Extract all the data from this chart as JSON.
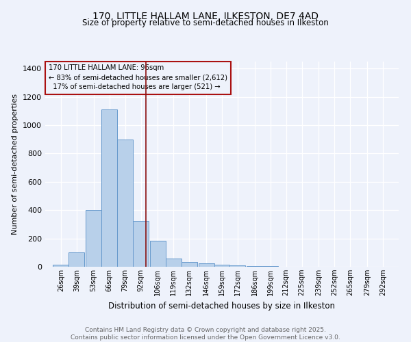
{
  "title": "170, LITTLE HALLAM LANE, ILKESTON, DE7 4AD",
  "subtitle": "Size of property relative to semi-detached houses in Ilkeston",
  "xlabel": "Distribution of semi-detached houses by size in Ilkeston",
  "ylabel": "Number of semi-detached properties",
  "footer_line1": "Contains HM Land Registry data © Crown copyright and database right 2025.",
  "footer_line2": "Contains public sector information licensed under the Open Government Licence v3.0.",
  "bin_labels": [
    "26sqm",
    "39sqm",
    "53sqm",
    "66sqm",
    "79sqm",
    "92sqm",
    "106sqm",
    "119sqm",
    "132sqm",
    "146sqm",
    "159sqm",
    "172sqm",
    "186sqm",
    "199sqm",
    "212sqm",
    "225sqm",
    "239sqm",
    "252sqm",
    "265sqm",
    "279sqm",
    "292sqm"
  ],
  "bin_centers": [
    26,
    39,
    53,
    66,
    79,
    92,
    106,
    119,
    132,
    146,
    159,
    172,
    186,
    199,
    212,
    225,
    239,
    252,
    265,
    279,
    292
  ],
  "bar_values": [
    15,
    100,
    400,
    1110,
    900,
    325,
    185,
    60,
    35,
    25,
    15,
    10,
    5,
    3,
    2,
    1,
    1,
    0,
    0,
    0
  ],
  "bar_color": "#b8d0ea",
  "bar_edge_color": "#6699cc",
  "property_size": 96,
  "red_line_color": "#8b1010",
  "annotation_line1": "170 LITTLE HALLAM LANE: 96sqm",
  "annotation_line2": "← 83% of semi-detached houses are smaller (2,612)",
  "annotation_line3": "17% of semi-detached houses are larger (521) →",
  "annotation_box_color": "#aa1111",
  "ylim": [
    0,
    1450
  ],
  "background_color": "#eef2fb",
  "grid_color": "#ffffff",
  "title_fontsize": 10,
  "subtitle_fontsize": 8.5,
  "ylabel_fontsize": 8,
  "xlabel_fontsize": 8.5,
  "tick_fontsize": 7,
  "footer_fontsize": 6.5
}
